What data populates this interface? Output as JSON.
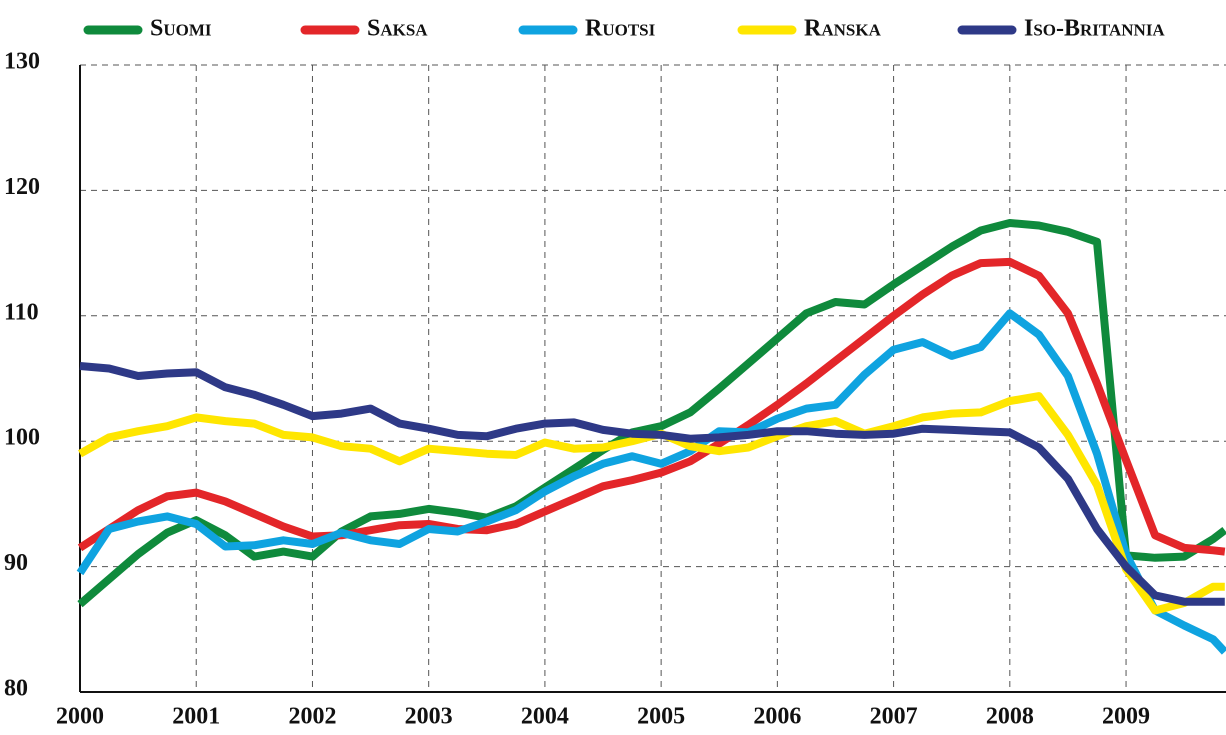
{
  "chart_data": {
    "type": "line",
    "x": [
      2000,
      2000.25,
      2000.5,
      2000.75,
      2001,
      2001.25,
      2001.5,
      2001.75,
      2002,
      2002.25,
      2002.5,
      2002.75,
      2003,
      2003.25,
      2003.5,
      2003.75,
      2004,
      2004.25,
      2004.5,
      2004.75,
      2005,
      2005.25,
      2005.5,
      2005.75,
      2006,
      2006.25,
      2006.5,
      2006.75,
      2007,
      2007.25,
      2007.5,
      2007.75,
      2008,
      2008.25,
      2008.5,
      2008.75,
      2009,
      2009.25,
      2009.5,
      2009.75,
      2009.85
    ],
    "series": [
      {
        "name": "Suomi",
        "color": "#0f8a3c",
        "values": [
          87,
          89,
          91,
          92.7,
          93.7,
          92.5,
          90.8,
          91.2,
          90.8,
          92.8,
          94,
          94.2,
          94.6,
          94.3,
          93.9,
          94.8,
          96.3,
          97.8,
          99.3,
          100.7,
          101.2,
          102.3,
          104.2,
          106.2,
          108.2,
          110.2,
          111.1,
          110.9,
          112.5,
          114,
          115.5,
          116.8,
          117.4,
          117.2,
          116.7,
          115.9,
          90.9,
          90.7,
          90.8,
          92.2,
          92.9
        ]
      },
      {
        "name": "Saksa",
        "color": "#e32629",
        "values": [
          91.5,
          93,
          94.5,
          95.6,
          95.9,
          95.2,
          94.2,
          93.2,
          92.4,
          92.5,
          92.9,
          93.3,
          93.4,
          93,
          92.9,
          93.4,
          94.4,
          95.4,
          96.4,
          96.9,
          97.5,
          98.4,
          99.8,
          101.3,
          102.9,
          104.6,
          106.4,
          108.2,
          110,
          111.7,
          113.2,
          114.2,
          114.3,
          113.2,
          110.2,
          104.6,
          98.5,
          92.5,
          91.5,
          91.3,
          91.2
        ]
      },
      {
        "name": "Ruotsi",
        "color": "#0fa3e0",
        "values": [
          89.5,
          93,
          93.6,
          94,
          93.4,
          91.6,
          91.7,
          92.1,
          91.8,
          92.7,
          92.1,
          91.8,
          93,
          92.8,
          93.6,
          94.5,
          96,
          97.2,
          98.2,
          98.8,
          98.2,
          99.2,
          100.8,
          100.7,
          101.8,
          102.6,
          102.9,
          105.3,
          107.3,
          107.9,
          106.8,
          107.5,
          110.2,
          108.5,
          105.2,
          99,
          91,
          86.5,
          85.3,
          84.2,
          83.2
        ]
      },
      {
        "name": "Ranska",
        "color": "#ffe600",
        "values": [
          99,
          100.3,
          100.8,
          101.2,
          101.9,
          101.6,
          101.4,
          100.5,
          100.3,
          99.6,
          99.4,
          98.4,
          99.4,
          99.2,
          99,
          98.9,
          99.9,
          99.4,
          99.5,
          100,
          100.6,
          99.6,
          99.2,
          99.5,
          100.4,
          101.2,
          101.6,
          100.6,
          101.2,
          101.9,
          102.2,
          102.3,
          103.2,
          103.6,
          100.5,
          96.5,
          89.8,
          86.5,
          87.1,
          88.4,
          88.4
        ]
      },
      {
        "name": "Iso-Britannia",
        "color": "#2e3987",
        "values": [
          106,
          105.8,
          105.2,
          105.4,
          105.5,
          104.3,
          103.7,
          102.9,
          102,
          102.2,
          102.6,
          101.4,
          101,
          100.5,
          100.4,
          101,
          101.4,
          101.5,
          100.9,
          100.6,
          100.5,
          100.2,
          100.3,
          100.5,
          100.8,
          100.8,
          100.6,
          100.5,
          100.6,
          101,
          100.9,
          100.8,
          100.7,
          99.5,
          97,
          93,
          90,
          87.7,
          87.2,
          87.2,
          87.2
        ]
      }
    ],
    "xlim": [
      2000,
      2009.86
    ],
    "xticks": [
      2000,
      2001,
      2002,
      2003,
      2004,
      2005,
      2006,
      2007,
      2008,
      2009
    ],
    "ylim": [
      80,
      130
    ],
    "yticks": [
      80,
      90,
      100,
      110,
      120,
      130
    ],
    "grid": true,
    "legend": "top"
  }
}
